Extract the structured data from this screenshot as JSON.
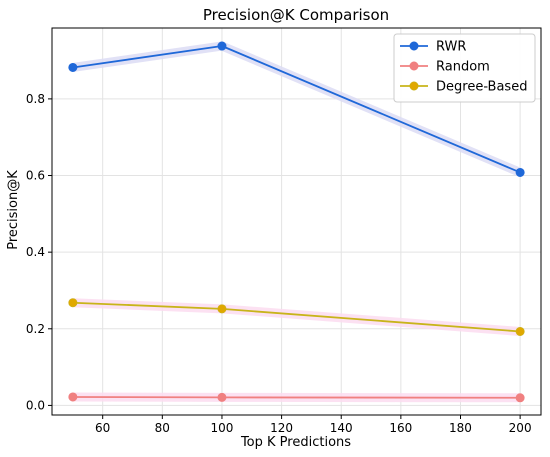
{
  "chart_data": {
    "type": "line",
    "title": "Precision@K Comparison",
    "xlabel": "Top K Predictions",
    "ylabel": "Precision@K",
    "x": [
      50,
      100,
      200
    ],
    "xlim": [
      43,
      207
    ],
    "ylim": [
      -0.025,
      0.985
    ],
    "xticks": [
      60,
      80,
      100,
      120,
      140,
      160,
      180,
      200
    ],
    "yticks": [
      0.0,
      0.2,
      0.4,
      0.6,
      0.8
    ],
    "ytick_labels": [
      "0.0",
      "0.2",
      "0.4",
      "0.6",
      "0.8"
    ],
    "grid": true,
    "legend_position": "top-right",
    "series": [
      {
        "name": "RWR",
        "values": [
          0.882,
          0.938,
          0.608
        ],
        "color": "#1f68d8",
        "band_color": "#dcdcf4"
      },
      {
        "name": "Random",
        "values": [
          0.022,
          0.021,
          0.02
        ],
        "color": "#f08080",
        "band_color": "#fbdcf0"
      },
      {
        "name": "Degree-Based",
        "values": [
          0.268,
          0.252,
          0.193
        ],
        "color": "#c8b41a",
        "band_color": "#fbdcf0",
        "marker_color": "#e0a800"
      }
    ]
  }
}
